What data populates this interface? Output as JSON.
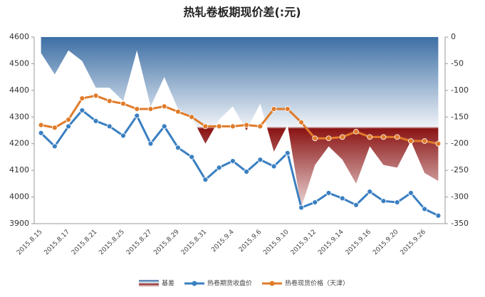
{
  "chart_data": {
    "type": "combo",
    "title": "热轧卷板期现价差(:元)",
    "categories": [
      "2015.8.15",
      null,
      "2015.8.17",
      null,
      "2015.8.21",
      null,
      "2015.8.25",
      null,
      "2015.8.27",
      null,
      "2015.8.29",
      null,
      "2015.8.31",
      null,
      "2015.9.4",
      null,
      "2015.9.6",
      null,
      "2015.9.10",
      null,
      "2015.9.12",
      null,
      "2015.9.14",
      null,
      "2015.9.16",
      null,
      "2015.9.20",
      null,
      "2015.9.26",
      null
    ],
    "series": [
      {
        "name": "基差",
        "type": "area",
        "axis": "y2",
        "color": "#3d6fa5",
        "color2": "#8b1414",
        "values": [
          -30,
          -70,
          -25,
          -45,
          -95,
          -95,
          -120,
          -25,
          -130,
          -75,
          -135,
          -150,
          -200,
          -155,
          -130,
          -175,
          -125,
          -215,
          -165,
          -320,
          -240,
          -205,
          -230,
          -275,
          -205,
          -240,
          -245,
          -195,
          -255,
          -270
        ]
      },
      {
        "name": "热卷期货收盘价",
        "type": "line",
        "color": "#3a7fc1",
        "values": [
          4240,
          4190,
          4265,
          4325,
          4285,
          4265,
          4230,
          4305,
          4200,
          4265,
          4185,
          4150,
          4065,
          4110,
          4135,
          4095,
          4140,
          4115,
          4165,
          3960,
          3980,
          4015,
          3995,
          3970,
          4020,
          3985,
          3980,
          4015,
          3955,
          3930
        ]
      },
      {
        "name": "热卷现货价格（天津）",
        "type": "line",
        "color": "#e07b2a",
        "values": [
          4270,
          4260,
          4290,
          4370,
          4380,
          4360,
          4350,
          4330,
          4330,
          4340,
          4320,
          4300,
          4265,
          4265,
          4265,
          4270,
          4265,
          4330,
          4330,
          4280,
          4220,
          4220,
          4225,
          4245,
          4225,
          4225,
          4225,
          4210,
          4210,
          4200
        ]
      }
    ],
    "ylim": [
      3900,
      4600
    ],
    "yticks": [
      3900,
      4000,
      4100,
      4200,
      4300,
      4400,
      4500,
      4600
    ],
    "y2lim": [
      -350,
      0
    ],
    "y2ticks": [
      -350,
      -300,
      -250,
      -200,
      -150,
      -100,
      -50,
      0
    ],
    "legend": "bottom"
  }
}
